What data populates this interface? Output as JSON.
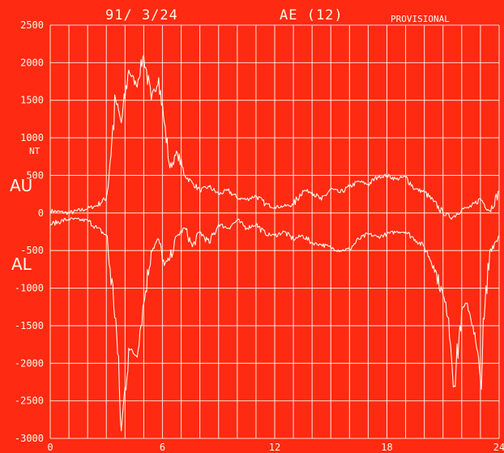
{
  "chart_data": {
    "type": "line",
    "title_date": "91/ 3/24",
    "title_index": "AE (12)",
    "title_status": "PROVISIONAL",
    "unit_label": "NT",
    "xlim": [
      0,
      24
    ],
    "ylim": [
      -3000,
      2500
    ],
    "x_ticks": [
      0,
      6,
      12,
      18,
      24
    ],
    "x_tick_labels": [
      "0",
      "6",
      "12",
      "18",
      "24"
    ],
    "y_ticks": [
      2500,
      2000,
      1500,
      1000,
      500,
      0,
      -500,
      -1000,
      -1500,
      -2000,
      -2500,
      -3000
    ],
    "y_tick_labels": [
      "2500",
      "2000",
      "1500",
      "1000",
      "500",
      "0",
      "-500",
      "-1000",
      "-1500",
      "-2000",
      "-2500",
      "-3000"
    ],
    "grid": true,
    "series": [
      {
        "name": "AU",
        "x": [
          0,
          1,
          2,
          2.5,
          3,
          3.5,
          3.8,
          4.2,
          4.6,
          5.0,
          5.4,
          5.8,
          6.1,
          6.4,
          6.8,
          7.2,
          7.6,
          8.0,
          8.5,
          9.0,
          9.5,
          10.0,
          10.5,
          11.0,
          11.5,
          12.0,
          12.5,
          13.0,
          13.5,
          14.0,
          14.5,
          15.0,
          15.5,
          16.0,
          16.5,
          17.0,
          17.5,
          18.0,
          18.5,
          19.0,
          19.5,
          20.0,
          20.5,
          21.0,
          21.5,
          22.0,
          22.5,
          23.0,
          23.5,
          24.0
        ],
        "y": [
          30,
          0,
          60,
          100,
          200,
          1500,
          1200,
          1900,
          1700,
          2100,
          1500,
          1800,
          1200,
          600,
          800,
          500,
          400,
          300,
          350,
          250,
          300,
          200,
          180,
          230,
          120,
          80,
          90,
          110,
          300,
          280,
          170,
          320,
          270,
          350,
          420,
          380,
          480,
          500,
          450,
          480,
          320,
          280,
          150,
          0,
          -60,
          50,
          80,
          190,
          30,
          280
        ]
      },
      {
        "name": "AL",
        "x": [
          0,
          1,
          2,
          2.5,
          3,
          3.5,
          3.8,
          4.2,
          4.6,
          5.0,
          5.4,
          5.8,
          6.1,
          6.4,
          6.8,
          7.2,
          7.6,
          8.0,
          8.5,
          9.0,
          9.5,
          10.0,
          10.5,
          11.0,
          11.5,
          12.0,
          12.5,
          13.0,
          13.5,
          14.0,
          14.5,
          15.0,
          15.5,
          16.0,
          16.5,
          17.0,
          17.5,
          18.0,
          18.5,
          19.0,
          19.5,
          20.0,
          20.5,
          21.0,
          21.3,
          21.6,
          22.0,
          22.3,
          22.6,
          23.0,
          23.5,
          24.0
        ],
        "y": [
          -150,
          -80,
          -100,
          -200,
          -300,
          -1400,
          -2900,
          -1800,
          -1900,
          -1200,
          -500,
          -350,
          -700,
          -600,
          -300,
          -200,
          -450,
          -250,
          -400,
          -150,
          -200,
          -100,
          -200,
          -150,
          -280,
          -300,
          -250,
          -350,
          -300,
          -400,
          -420,
          -460,
          -500,
          -480,
          -350,
          -280,
          -320,
          -280,
          -250,
          -250,
          -350,
          -450,
          -700,
          -1100,
          -1400,
          -2300,
          -1300,
          -1200,
          -1500,
          -2200,
          -500,
          -300
        ]
      }
    ]
  }
}
